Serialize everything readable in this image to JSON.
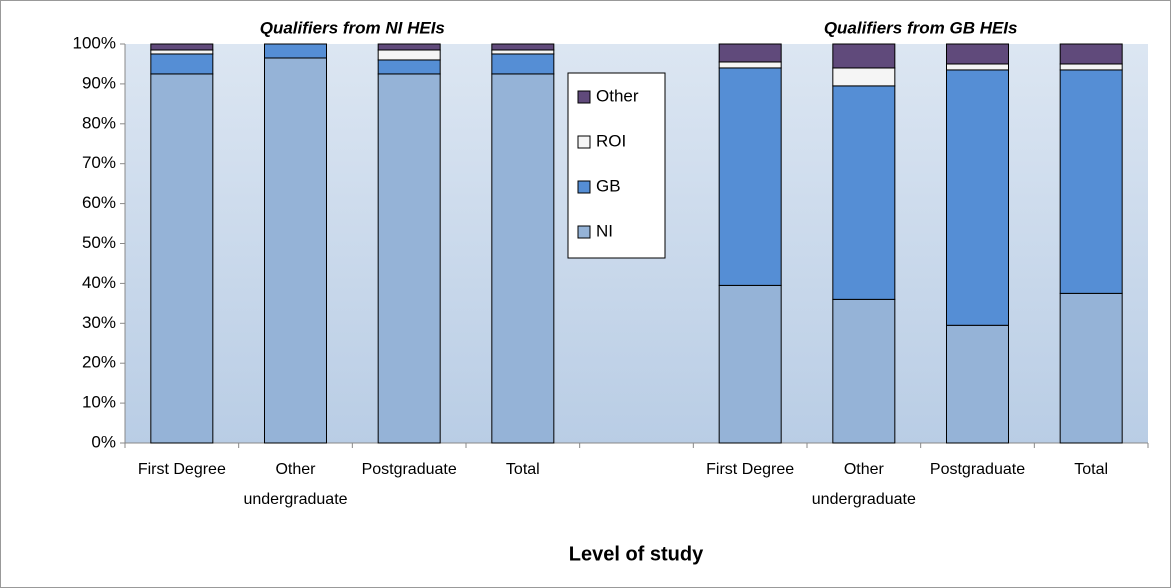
{
  "chart_data": {
    "type": "stacked_bar",
    "annotations": [
      "Qualifiers from NI HEIs",
      "Qualifiers from GB HEIs"
    ],
    "x_label": "Level of study",
    "categories": [
      "First Degree",
      "Other undergraduate",
      "Postgraduate",
      "Total",
      null,
      "First Degree",
      "Other undergraduate",
      "Postgraduate",
      "Total"
    ],
    "series": [
      {
        "name": "NI",
        "color": "#95b3d7",
        "values": [
          92.5,
          96.5,
          92.5,
          92.5,
          null,
          39.5,
          36,
          29.5,
          37.5
        ]
      },
      {
        "name": "GB",
        "color": "#558ed5",
        "values": [
          5,
          3.5,
          3.5,
          5,
          null,
          54.5,
          53.5,
          64,
          56
        ]
      },
      {
        "name": "ROI",
        "color": "#f5f5f5",
        "values": [
          1,
          0,
          2.5,
          1,
          null,
          1.5,
          4.5,
          1.5,
          1.5
        ]
      },
      {
        "name": "Other",
        "color": "#604a7b",
        "values": [
          1.5,
          0,
          1.5,
          1.5,
          null,
          4.5,
          6,
          5,
          5
        ]
      }
    ],
    "ylim": [
      0,
      100
    ],
    "yticks": [
      {
        "value": 0,
        "label": "0%"
      },
      {
        "value": 10,
        "label": "10%"
      },
      {
        "value": 20,
        "label": "20%"
      },
      {
        "value": 30,
        "label": "30%"
      },
      {
        "value": 40,
        "label": "40%"
      },
      {
        "value": 50,
        "label": "50%"
      },
      {
        "value": 60,
        "label": "60%"
      },
      {
        "value": 70,
        "label": "70%"
      },
      {
        "value": 80,
        "label": "80%"
      },
      {
        "value": 90,
        "label": "90%"
      },
      {
        "value": 100,
        "label": "100%"
      }
    ],
    "legend": "inside"
  }
}
